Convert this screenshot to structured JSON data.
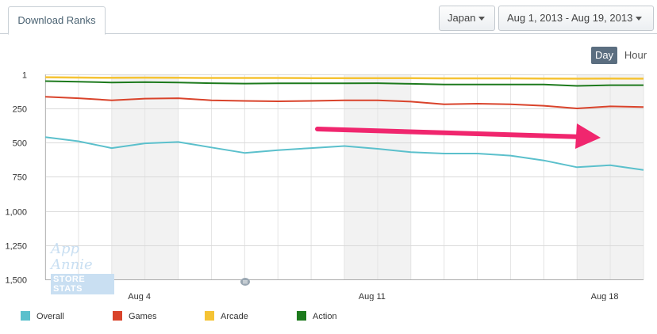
{
  "tab": {
    "label": "Download Ranks"
  },
  "filters": {
    "country": "Japan",
    "date_range": "Aug 1, 2013 - Aug 19, 2013"
  },
  "period_toggle": {
    "day": "Day",
    "hour": "Hour"
  },
  "watermark": {
    "line1": "App Annie",
    "line2": "STORE STATS"
  },
  "colors": {
    "overall": "#5bc0cc",
    "games": "#d9432b",
    "arcade": "#f5c334",
    "action": "#1d7a1d",
    "arrow": "#f0266e"
  },
  "chart_data": {
    "type": "line",
    "title": "",
    "xlabel": "",
    "ylabel": "",
    "y_reversed": true,
    "ylim": [
      1,
      1500
    ],
    "yticks": [
      "1",
      "250",
      "500",
      "750",
      "1,000",
      "1,250",
      "1,500"
    ],
    "x": [
      "Aug 1",
      "Aug 2",
      "Aug 3",
      "Aug 4",
      "Aug 5",
      "Aug 6",
      "Aug 7",
      "Aug 8",
      "Aug 9",
      "Aug 10",
      "Aug 11",
      "Aug 12",
      "Aug 13",
      "Aug 14",
      "Aug 15",
      "Aug 16",
      "Aug 17",
      "Aug 18",
      "Aug 19"
    ],
    "xticks": [
      "Aug 4",
      "Aug 11",
      "Aug 18"
    ],
    "grid": true,
    "legend_position": "bottom-left",
    "series": [
      {
        "name": "Overall",
        "values": [
          460,
          490,
          540,
          505,
          495,
          535,
          575,
          555,
          540,
          525,
          545,
          570,
          580,
          580,
          595,
          630,
          680,
          665,
          700
        ]
      },
      {
        "name": "Games",
        "values": [
          165,
          175,
          190,
          178,
          175,
          190,
          195,
          198,
          195,
          190,
          190,
          200,
          220,
          215,
          220,
          230,
          250,
          235,
          240
        ]
      },
      {
        "name": "Arcade",
        "values": [
          22,
          24,
          26,
          25,
          26,
          27,
          27,
          27,
          28,
          28,
          28,
          29,
          30,
          30,
          30,
          31,
          32,
          31,
          32
        ]
      },
      {
        "name": "Action",
        "values": [
          50,
          55,
          60,
          57,
          60,
          65,
          68,
          66,
          66,
          66,
          65,
          70,
          75,
          75,
          75,
          75,
          85,
          80,
          80
        ]
      }
    ]
  }
}
